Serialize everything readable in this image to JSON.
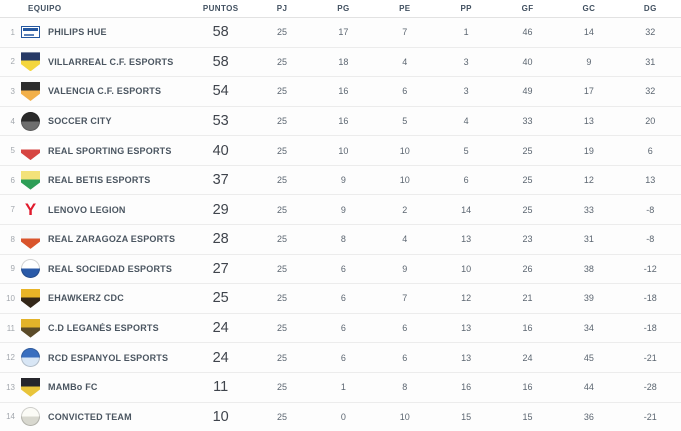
{
  "table": {
    "columns": [
      "EQUIPO",
      "PUNTOS",
      "PJ",
      "PG",
      "PE",
      "PP",
      "GF",
      "GC",
      "DG"
    ]
  },
  "colors": {
    "header_text": "#415060",
    "team_text": "#4a5560",
    "points_text": "#3f444c",
    "stat_text": "#5c6671",
    "row_divider": "#ececec"
  },
  "rows": [
    {
      "rank": "1",
      "team": "PHILIPS HUE",
      "logo": {
        "icon": "philips-hue-logo-icon",
        "shape": "rect",
        "colors": [
          "#ffffff",
          "#2457a0"
        ]
      },
      "stats": [
        "58",
        "25",
        "17",
        "7",
        "1",
        "46",
        "14",
        "32"
      ]
    },
    {
      "rank": "2",
      "team": "VILLARREAL C.F. ESPORTS",
      "logo": {
        "icon": "villarreal-crest-icon",
        "shape": "shield",
        "colors": [
          "#273a66",
          "#f4d63d"
        ]
      },
      "stats": [
        "58",
        "25",
        "18",
        "4",
        "3",
        "40",
        "9",
        "31"
      ]
    },
    {
      "rank": "3",
      "team": "VALENCIA C.F. ESPORTS",
      "logo": {
        "icon": "valencia-crest-icon",
        "shape": "shield",
        "colors": [
          "#2e2e2e",
          "#f2b04a"
        ]
      },
      "stats": [
        "54",
        "25",
        "16",
        "6",
        "3",
        "49",
        "17",
        "32"
      ]
    },
    {
      "rank": "4",
      "team": "SOCCER CITY",
      "logo": {
        "icon": "soccer-city-crest-icon",
        "shape": "circle",
        "colors": [
          "#2a2a2a",
          "#6e6e6e"
        ]
      },
      "stats": [
        "53",
        "25",
        "16",
        "5",
        "4",
        "33",
        "13",
        "20"
      ]
    },
    {
      "rank": "5",
      "team": "REAL SPORTING ESPORTS",
      "logo": {
        "icon": "sporting-crest-icon",
        "shape": "shield",
        "colors": [
          "#ffffff",
          "#d64541"
        ]
      },
      "stats": [
        "40",
        "25",
        "10",
        "10",
        "5",
        "25",
        "19",
        "6"
      ]
    },
    {
      "rank": "6",
      "team": "REAL BETIS ESPORTS",
      "logo": {
        "icon": "betis-crest-icon",
        "shape": "shield",
        "colors": [
          "#f3e27a",
          "#2e9e57"
        ]
      },
      "stats": [
        "37",
        "25",
        "9",
        "10",
        "6",
        "25",
        "12",
        "13"
      ]
    },
    {
      "rank": "7",
      "team": "LENOVO LEGION",
      "logo": {
        "icon": "lenovo-legion-logo-icon",
        "shape": "glyph",
        "colors": [
          "transparent",
          "#e11b2d"
        ],
        "glyph": "Y"
      },
      "stats": [
        "29",
        "25",
        "9",
        "2",
        "14",
        "25",
        "33",
        "-8"
      ]
    },
    {
      "rank": "8",
      "team": "REAL ZARAGOZA ESPORTS",
      "logo": {
        "icon": "zaragoza-crest-icon",
        "shape": "shield",
        "colors": [
          "#f5f5f5",
          "#d9542b"
        ]
      },
      "stats": [
        "28",
        "25",
        "8",
        "4",
        "13",
        "23",
        "31",
        "-8"
      ]
    },
    {
      "rank": "9",
      "team": "REAL SOCIEDAD ESPORTS",
      "logo": {
        "icon": "real-sociedad-crest-icon",
        "shape": "circle",
        "colors": [
          "#ffffff",
          "#2a5aa8"
        ]
      },
      "stats": [
        "27",
        "25",
        "6",
        "9",
        "10",
        "26",
        "38",
        "-12"
      ]
    },
    {
      "rank": "10",
      "team": "EHAWKERZ CDC",
      "logo": {
        "icon": "ehawkerz-crest-icon",
        "shape": "shield",
        "colors": [
          "#e8b427",
          "#332718"
        ]
      },
      "stats": [
        "25",
        "25",
        "6",
        "7",
        "12",
        "21",
        "39",
        "-18"
      ]
    },
    {
      "rank": "11",
      "team": "C.D LEGANÉS ESPORTS",
      "logo": {
        "icon": "leganes-crest-icon",
        "shape": "shield",
        "colors": [
          "#e3b32a",
          "#5a4a28"
        ]
      },
      "stats": [
        "24",
        "25",
        "6",
        "6",
        "13",
        "16",
        "34",
        "-18"
      ]
    },
    {
      "rank": "12",
      "team": "RCD ESPANYOL ESPORTS",
      "logo": {
        "icon": "espanyol-crest-icon",
        "shape": "circle",
        "colors": [
          "#3a6fbf",
          "#d8e6f5"
        ]
      },
      "stats": [
        "24",
        "25",
        "6",
        "6",
        "13",
        "24",
        "45",
        "-21"
      ]
    },
    {
      "rank": "13",
      "team": "MAMBo FC",
      "logo": {
        "icon": "mambo-crest-icon",
        "shape": "shield",
        "colors": [
          "#26262c",
          "#e8c43a"
        ]
      },
      "stats": [
        "11",
        "25",
        "1",
        "8",
        "16",
        "16",
        "44",
        "-28"
      ]
    },
    {
      "rank": "14",
      "team": "CONVICTED TEAM",
      "logo": {
        "icon": "convicted-crest-icon",
        "shape": "circle",
        "colors": [
          "#fbfbf6",
          "#d8d8cf"
        ]
      },
      "stats": [
        "10",
        "25",
        "0",
        "10",
        "15",
        "15",
        "36",
        "-21"
      ]
    }
  ]
}
